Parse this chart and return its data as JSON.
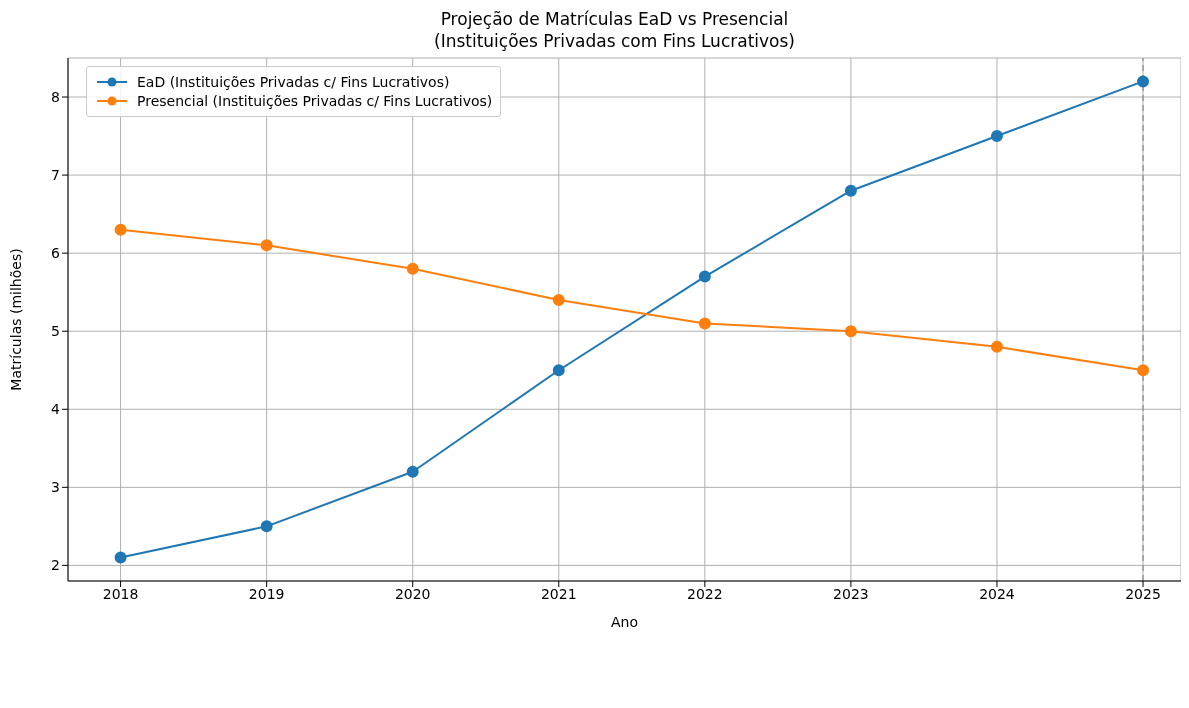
{
  "chart_data": {
    "type": "line",
    "title": "Projeção de Matrículas EaD vs Presencial\n(Instituições Privadas com Fins Lucrativos)",
    "xlabel": "Ano",
    "ylabel": "Matrículas (milhões)",
    "x": [
      2018,
      2019,
      2020,
      2021,
      2022,
      2023,
      2024,
      2025
    ],
    "series": [
      {
        "name": "EaD (Instituições Privadas c/ Fins Lucrativos)",
        "color": "#1f77b4",
        "values": [
          2.1,
          2.5,
          3.2,
          4.5,
          5.7,
          6.8,
          7.5,
          8.2
        ]
      },
      {
        "name": "Presencial (Instituições Privadas c/ Fins Lucrativos)",
        "color": "#ff7f0e",
        "values": [
          6.3,
          6.1,
          5.8,
          5.4,
          5.1,
          5.0,
          4.8,
          4.5
        ]
      }
    ],
    "xlim": [
      2017.64,
      2025.26
    ],
    "xticks": [
      2018,
      2019,
      2020,
      2021,
      2022,
      2023,
      2024,
      2025
    ],
    "ylim": [
      1.8,
      8.5
    ],
    "yticks": [
      2,
      3,
      4,
      5,
      6,
      7,
      8
    ],
    "ref_lines": [
      {
        "axis": "x",
        "value": 2025,
        "color": "#999999",
        "line_style": "dashed"
      }
    ],
    "grid": true,
    "legend": "top left",
    "marker": "circle",
    "line_style": "solid"
  }
}
